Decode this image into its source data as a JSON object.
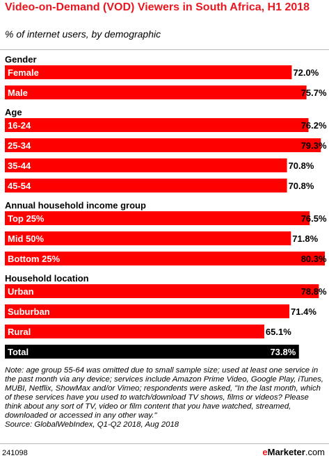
{
  "header": {
    "title": "Video-on-Demand (VOD) Viewers in South Africa, H1 2018",
    "subtitle": "% of internet users, by demographic"
  },
  "chart_data": {
    "type": "bar",
    "orientation": "horizontal",
    "title": "Video-on-Demand (VOD) Viewers in South Africa, H1 2018",
    "subtitle": "% of internet users, by demographic",
    "unit": "%",
    "xlim": [
      0,
      80.3
    ],
    "bar_color": "#ff0000",
    "total_color": "#000000",
    "groups": [
      {
        "name": "Gender",
        "items": [
          {
            "label": "Female",
            "value": 72.0,
            "display": "72.0%"
          },
          {
            "label": "Male",
            "value": 75.7,
            "display": "75.7%"
          }
        ]
      },
      {
        "name": "Age",
        "items": [
          {
            "label": "16-24",
            "value": 76.2,
            "display": "76.2%"
          },
          {
            "label": "25-34",
            "value": 79.3,
            "display": "79.3%"
          },
          {
            "label": "35-44",
            "value": 70.8,
            "display": "70.8%"
          },
          {
            "label": "45-54",
            "value": 70.8,
            "display": "70.8%"
          }
        ]
      },
      {
        "name": "Annual household income group",
        "items": [
          {
            "label": "Top 25%",
            "value": 76.5,
            "display": "76.5%"
          },
          {
            "label": "Mid 50%",
            "value": 71.8,
            "display": "71.8%"
          },
          {
            "label": "Bottom 25%",
            "value": 80.3,
            "display": "80.3%"
          }
        ]
      },
      {
        "name": "Household location",
        "items": [
          {
            "label": "Urban",
            "value": 78.8,
            "display": "78.8%"
          },
          {
            "label": "Suburban",
            "value": 71.4,
            "display": "71.4%"
          },
          {
            "label": "Rural",
            "value": 65.1,
            "display": "65.1%"
          }
        ]
      }
    ],
    "total": {
      "label": "Total",
      "value": 73.8,
      "display": "73.8%"
    }
  },
  "notes": {
    "note": "Note: age group 55-64 was omitted due to small sample size; used at least one service in the past month via any device; services include Amazon Prime Video, Google Play, iTunes, MUBI, Netflix, ShowMax and/or Vimeo; respondents were asked, \"In the last month, which of these services have you used to watch/download TV shows, films or videos? Please think about any sort of TV, video or film content that you have watched, streamed, downloaded or accessed in any other way.\"",
    "source": "Source: GlobalWebIndex, Q1-Q2 2018, Aug 2018"
  },
  "footer": {
    "chart_id": "241098",
    "brand_e": "e",
    "brand_name": "Marketer",
    "brand_suffix": ".com"
  }
}
